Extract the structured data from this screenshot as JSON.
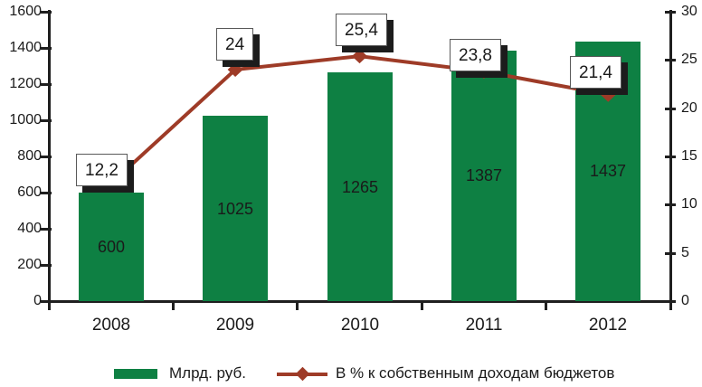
{
  "chart_data": {
    "type": "bar",
    "combo": "bar+line",
    "categories": [
      "2008",
      "2009",
      "2010",
      "2011",
      "2012"
    ],
    "series": [
      {
        "name": "Млрд. руб.",
        "type": "bar",
        "axis": "left",
        "values": [
          600,
          1025,
          1265,
          1387,
          1437
        ],
        "value_labels": [
          "600",
          "1025",
          "1265",
          "1387",
          "1437"
        ]
      },
      {
        "name": "В % к собственным доходам бюджетов",
        "type": "line",
        "axis": "right",
        "values": [
          12.2,
          24,
          25.4,
          23.8,
          21.4
        ],
        "value_labels": [
          "12,2",
          "24",
          "25,4",
          "23,8",
          "21,4"
        ]
      }
    ],
    "left_axis": {
      "min": 0,
      "max": 1600,
      "step": 200,
      "tick_labels": [
        "0",
        "200",
        "400",
        "600",
        "800",
        "1000",
        "1200",
        "1400",
        "1600"
      ]
    },
    "right_axis": {
      "min": 0,
      "max": 30,
      "step": 5,
      "tick_labels": [
        "0",
        "5",
        "10",
        "15",
        "20",
        "25",
        "30"
      ]
    },
    "legend": [
      {
        "label": "Млрд. руб."
      },
      {
        "label": "В % к собственным доходам бюджетов"
      }
    ],
    "legend_position": "bottom",
    "grid": false,
    "colors": {
      "bar": "#0E8043",
      "line": "#9E3B27",
      "text": "#1A1A1A",
      "axis": "#1F1F1F",
      "label_box_bg": "#FFFFFF",
      "label_box_border": "#595959",
      "label_box_shadow": "#1C1C1C"
    }
  }
}
